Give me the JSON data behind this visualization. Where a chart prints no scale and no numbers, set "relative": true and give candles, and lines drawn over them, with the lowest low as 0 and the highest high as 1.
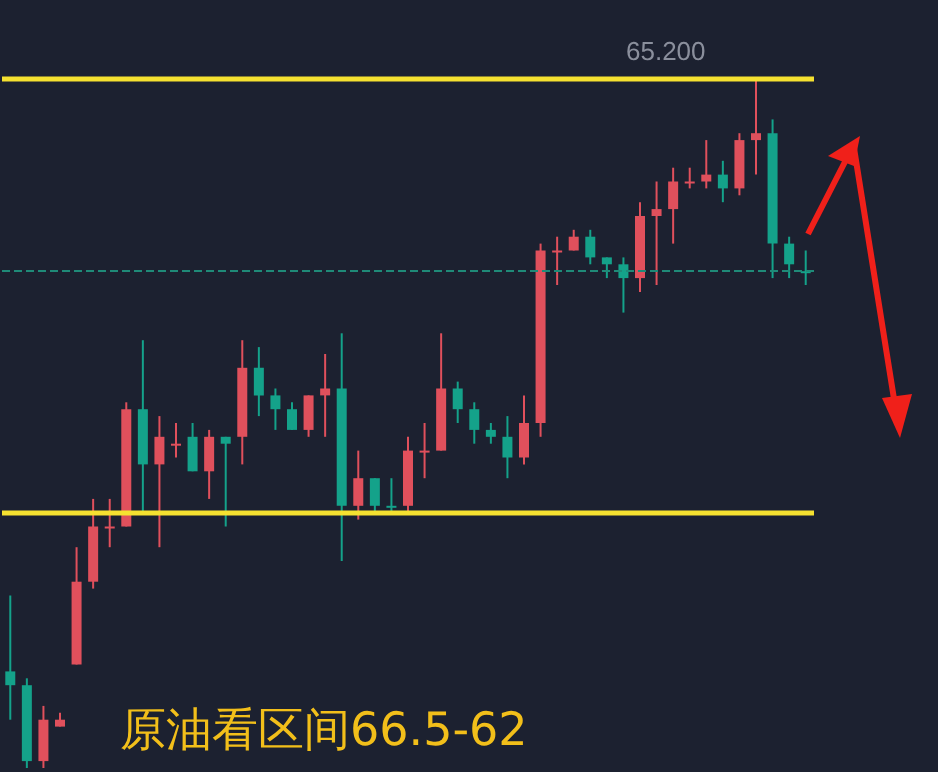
{
  "chart_data": {
    "type": "candlestick",
    "title": "原油看区间66.5-62",
    "relative": true,
    "categories": [
      null,
      null,
      null,
      null,
      null,
      null,
      null,
      null,
      null,
      null,
      null,
      null,
      null,
      null,
      null,
      null,
      null,
      null,
      null,
      null,
      null,
      null,
      null,
      null,
      null,
      null,
      null,
      null,
      null,
      null,
      null,
      null,
      null,
      null,
      null,
      null,
      null,
      null,
      null,
      null,
      null,
      null,
      null,
      null,
      null,
      null,
      null,
      null,
      null
    ],
    "ohlc": [
      [
        0.14,
        0.25,
        0.07,
        0.12
      ],
      [
        0.12,
        0.13,
        0,
        0.01
      ],
      [
        0.01,
        0.09,
        0,
        0.07
      ],
      [
        0.06,
        0.08,
        0.06,
        0.07
      ],
      [
        0.15,
        0.32,
        0.15,
        0.27
      ],
      [
        0.27,
        0.39,
        0.26,
        0.35
      ],
      [
        0.35,
        0.39,
        0.32,
        0.35
      ],
      [
        0.35,
        0.53,
        0.35,
        0.52
      ],
      [
        0.52,
        0.62,
        0.37,
        0.44
      ],
      [
        0.44,
        0.51,
        0.32,
        0.48
      ],
      [
        0.47,
        0.5,
        0.45,
        0.47
      ],
      [
        0.48,
        0.5,
        0.43,
        0.43
      ],
      [
        0.43,
        0.49,
        0.39,
        0.48
      ],
      [
        0.48,
        0.48,
        0.35,
        0.47
      ],
      [
        0.48,
        0.62,
        0.44,
        0.58
      ],
      [
        0.58,
        0.61,
        0.51,
        0.54
      ],
      [
        0.54,
        0.55,
        0.49,
        0.52
      ],
      [
        0.52,
        0.53,
        0.49,
        0.49
      ],
      [
        0.49,
        0.54,
        0.48,
        0.54
      ],
      [
        0.54,
        0.6,
        0.48,
        0.55
      ],
      [
        0.55,
        0.63,
        0.3,
        0.38
      ],
      [
        0.38,
        0.46,
        0.36,
        0.42
      ],
      [
        0.42,
        0.42,
        0.37,
        0.38
      ],
      [
        0.38,
        0.42,
        0.37,
        0.38
      ],
      [
        0.38,
        0.48,
        0.37,
        0.46
      ],
      [
        0.46,
        0.5,
        0.42,
        0.46
      ],
      [
        0.46,
        0.63,
        0.46,
        0.55
      ],
      [
        0.55,
        0.56,
        0.5,
        0.52
      ],
      [
        0.52,
        0.53,
        0.47,
        0.49
      ],
      [
        0.49,
        0.5,
        0.47,
        0.48
      ],
      [
        0.48,
        0.51,
        0.42,
        0.45
      ],
      [
        0.45,
        0.54,
        0.44,
        0.5
      ],
      [
        0.5,
        0.76,
        0.48,
        0.75
      ],
      [
        0.75,
        0.77,
        0.7,
        0.75
      ],
      [
        0.75,
        0.78,
        0.75,
        0.77
      ],
      [
        0.77,
        0.78,
        0.73,
        0.74
      ],
      [
        0.74,
        0.74,
        0.71,
        0.73
      ],
      [
        0.73,
        0.74,
        0.66,
        0.71
      ],
      [
        0.71,
        0.82,
        0.69,
        0.8
      ],
      [
        0.8,
        0.85,
        0.7,
        0.81
      ],
      [
        0.81,
        0.87,
        0.76,
        0.85
      ],
      [
        0.85,
        0.87,
        0.84,
        0.85
      ],
      [
        0.85,
        0.91,
        0.84,
        0.86
      ],
      [
        0.86,
        0.88,
        0.82,
        0.84
      ],
      [
        0.84,
        0.92,
        0.83,
        0.91
      ],
      [
        0.91,
        1,
        0.86,
        0.92
      ],
      [
        0.92,
        0.94,
        0.71,
        0.76
      ],
      [
        0.76,
        0.77,
        0.71,
        0.73
      ],
      [
        0.72,
        0.75,
        0.7,
        0.72
      ]
    ],
    "colors": [
      "#14a28a",
      "#14a28a",
      "#e0505c",
      "#e0505c",
      "#e0505c",
      "#e0505c",
      "#e0505c",
      "#e0505c",
      "#14a28a",
      "#e0505c",
      "#e0505c",
      "#14a28a",
      "#e0505c",
      "#14a28a",
      "#e0505c",
      "#14a28a",
      "#14a28a",
      "#14a28a",
      "#e0505c",
      "#e0505c",
      "#14a28a",
      "#e0505c",
      "#14a28a",
      "#14a28a",
      "#e0505c",
      "#e0505c",
      "#e0505c",
      "#14a28a",
      "#14a28a",
      "#14a28a",
      "#14a28a",
      "#e0505c",
      "#e0505c",
      "#e0505c",
      "#e0505c",
      "#14a28a",
      "#14a28a",
      "#14a28a",
      "#e0505c",
      "#e0505c",
      "#e0505c",
      "#e0505c",
      "#e0505c",
      "#14a28a",
      "#e0505c",
      "#e0505c",
      "#14a28a",
      "#14a28a",
      "#14a28a"
    ],
    "ref_lines": [
      {
        "axis": "y",
        "value": 1,
        "color": "#f5e130"
      },
      {
        "axis": "y",
        "value": 0.37,
        "color": "#f5e130"
      },
      {
        "axis": "y",
        "value": 0.72,
        "color": "#1f8a78",
        "line_style": "dashed"
      }
    ],
    "annotations": [
      "65.200"
    ]
  }
}
